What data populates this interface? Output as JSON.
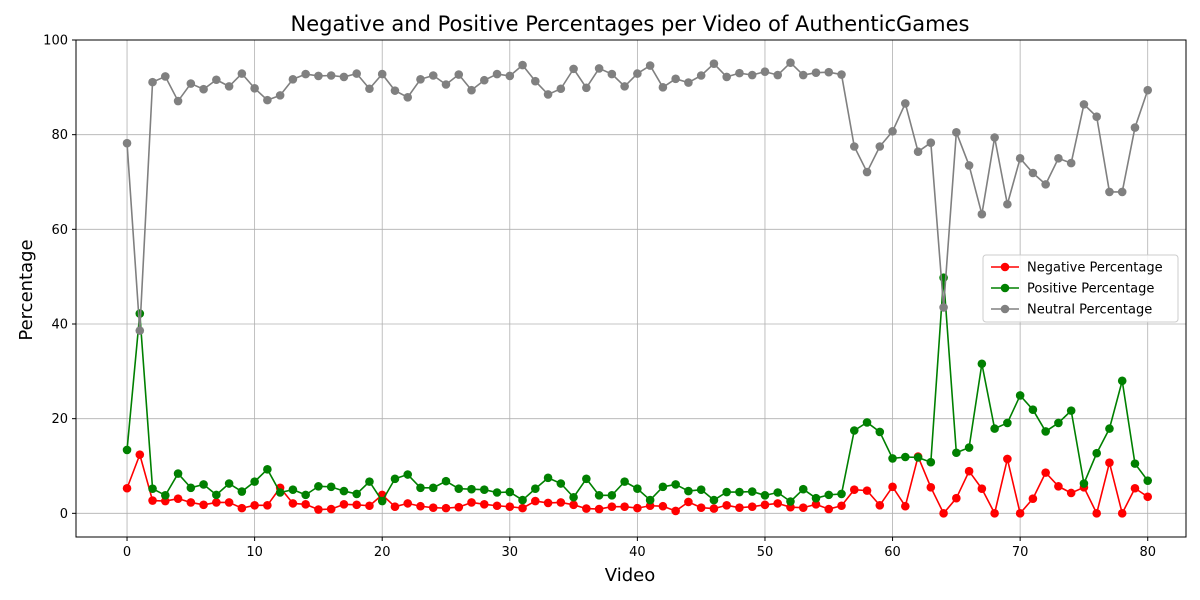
{
  "chart_data": {
    "type": "line",
    "title": "Negative and Positive Percentages per Video of AuthenticGames",
    "xlabel": "Video",
    "ylabel": "Percentage",
    "xlim": [
      -4,
      83
    ],
    "ylim": [
      -5,
      100
    ],
    "xticks": [
      0,
      10,
      20,
      30,
      40,
      50,
      60,
      70,
      80
    ],
    "yticks": [
      0,
      20,
      40,
      60,
      80,
      100
    ],
    "grid": true,
    "legend_position": "center-right",
    "x": [
      0,
      1,
      2,
      3,
      4,
      5,
      6,
      7,
      8,
      9,
      10,
      11,
      12,
      13,
      14,
      15,
      16,
      17,
      18,
      19,
      20,
      21,
      22,
      23,
      24,
      25,
      26,
      27,
      28,
      29,
      30,
      31,
      32,
      33,
      34,
      35,
      36,
      37,
      38,
      39,
      40,
      41,
      42,
      43,
      44,
      45,
      46,
      47,
      48,
      49,
      50,
      51,
      52,
      53,
      54,
      55,
      56,
      57,
      58,
      59,
      60,
      61,
      62,
      63,
      64,
      65,
      66,
      67,
      68,
      69,
      70,
      71,
      72,
      73,
      74,
      75,
      76,
      77,
      78,
      79,
      80
    ],
    "series": [
      {
        "name": "Negative Percentage",
        "color": "#ff0000",
        "values": [
          5.3,
          12.4,
          2.7,
          2.6,
          3.1,
          2.3,
          1.8,
          2.3,
          2.3,
          1.1,
          1.7,
          1.7,
          5.4,
          2.1,
          1.9,
          0.8,
          0.9,
          1.9,
          1.8,
          1.6,
          3.9,
          1.4,
          2.1,
          1.5,
          1.2,
          1.1,
          1.3,
          2.3,
          1.9,
          1.6,
          1.4,
          1.1,
          2.6,
          2.2,
          2.3,
          1.8,
          1.0,
          0.9,
          1.4,
          1.4,
          1.1,
          1.6,
          1.5,
          0.5,
          2.4,
          1.2,
          1.0,
          1.7,
          1.2,
          1.4,
          1.8,
          2.1,
          1.3,
          1.2,
          1.9,
          0.9,
          1.6,
          5.0,
          4.8,
          1.7,
          5.6,
          1.5,
          12.0,
          5.5,
          0.0,
          3.2,
          8.9,
          5.2,
          0.0,
          11.5,
          0.0,
          3.1,
          8.6,
          5.7,
          4.3,
          5.5,
          0.0,
          10.7,
          0.0,
          5.3,
          3.5
        ]
      },
      {
        "name": "Positive Percentage",
        "color": "#008000",
        "values": [
          13.4,
          42.2,
          5.2,
          3.8,
          8.4,
          5.4,
          6.1,
          3.9,
          6.3,
          4.6,
          6.7,
          9.3,
          4.4,
          5.0,
          3.9,
          5.7,
          5.6,
          4.7,
          4.1,
          6.7,
          2.6,
          7.3,
          8.2,
          5.4,
          5.4,
          6.8,
          5.2,
          5.1,
          5.0,
          4.4,
          4.5,
          2.8,
          5.2,
          7.5,
          6.3,
          3.4,
          7.3,
          3.8,
          3.8,
          6.7,
          5.2,
          2.8,
          5.6,
          6.1,
          4.7,
          5.0,
          2.8,
          4.5,
          4.5,
          4.6,
          3.8,
          4.4,
          2.5,
          5.1,
          3.2,
          3.9,
          4.1,
          17.5,
          19.2,
          17.2,
          11.6,
          11.9,
          11.8,
          10.8,
          49.8,
          12.8,
          13.9,
          31.6,
          17.9,
          19.1,
          24.9,
          21.9,
          17.3,
          19.1,
          21.7,
          6.3,
          12.7,
          17.9,
          28.0,
          10.5,
          6.9
        ]
      },
      {
        "name": "Neutral Percentage",
        "color": "#808080",
        "values": [
          78.2,
          38.6,
          91.1,
          92.3,
          87.1,
          90.8,
          89.6,
          91.6,
          90.2,
          92.9,
          89.8,
          87.3,
          88.3,
          91.7,
          92.8,
          92.4,
          92.5,
          92.2,
          92.9,
          89.7,
          92.8,
          89.3,
          87.9,
          91.7,
          92.5,
          90.6,
          92.7,
          89.4,
          91.5,
          92.8,
          92.4,
          94.7,
          91.3,
          88.5,
          89.7,
          93.9,
          89.9,
          94.0,
          92.8,
          90.2,
          92.9,
          94.6,
          90.0,
          91.8,
          91.0,
          92.5,
          95.0,
          92.2,
          93.0,
          92.6,
          93.3,
          92.6,
          95.2,
          92.6,
          93.1,
          93.2,
          92.7,
          77.5,
          72.1,
          77.5,
          80.7,
          86.6,
          76.4,
          78.3,
          43.5,
          80.5,
          73.5,
          63.2,
          79.4,
          65.3,
          75.0,
          71.9,
          69.5,
          75.0,
          74.0,
          86.4,
          83.8,
          67.9,
          67.9,
          81.5,
          89.4
        ]
      }
    ]
  }
}
